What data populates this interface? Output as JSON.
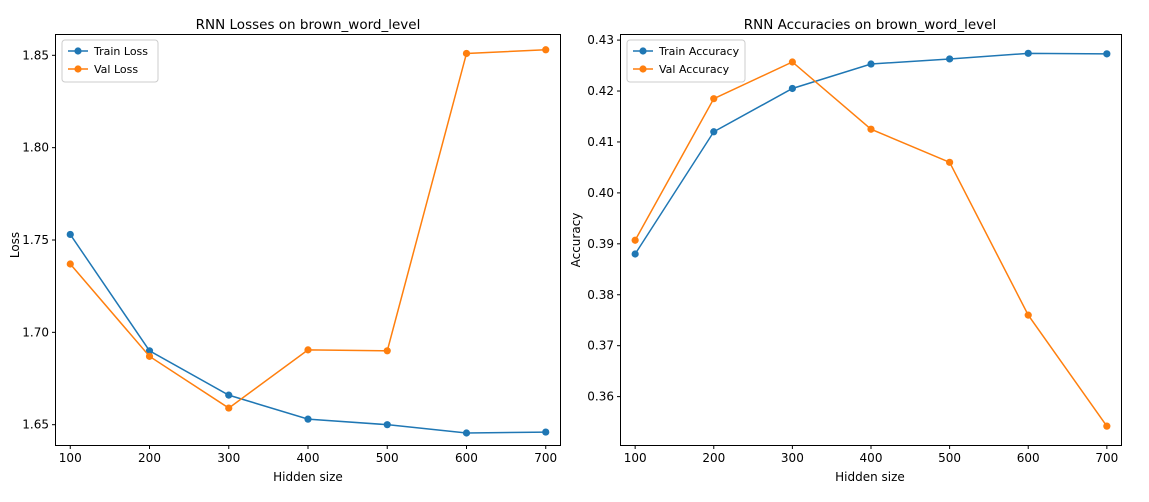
{
  "chart_data": [
    {
      "type": "line",
      "title": "RNN Losses on brown_word_level",
      "xlabel": "Hidden size",
      "ylabel": "Loss",
      "x": [
        100,
        200,
        300,
        400,
        500,
        600,
        700
      ],
      "xlim": [
        82,
        718
      ],
      "ylim": [
        1.639,
        1.861
      ],
      "xticks": [
        100,
        200,
        300,
        400,
        500,
        600,
        700
      ],
      "yticks": [
        1.65,
        1.7,
        1.75,
        1.8,
        1.85
      ],
      "ytick_labels": [
        "1.65",
        "1.70",
        "1.75",
        "1.80",
        "1.85"
      ],
      "grid": false,
      "legend_position": "top-left",
      "series": [
        {
          "name": "Train Loss",
          "color": "#1f77b4",
          "values": [
            1.753,
            1.69,
            1.666,
            1.653,
            1.65,
            1.6455,
            1.646
          ]
        },
        {
          "name": "Val Loss",
          "color": "#ff7f0e",
          "values": [
            1.737,
            1.687,
            1.659,
            1.6905,
            1.69,
            1.851,
            1.853
          ]
        }
      ]
    },
    {
      "type": "line",
      "title": "RNN Accuracies on brown_word_level",
      "xlabel": "Hidden size",
      "ylabel": "Accuracy",
      "x": [
        100,
        200,
        300,
        400,
        500,
        600,
        700
      ],
      "xlim": [
        82,
        718
      ],
      "ylim": [
        0.3505,
        0.431
      ],
      "xticks": [
        100,
        200,
        300,
        400,
        500,
        600,
        700
      ],
      "yticks": [
        0.36,
        0.37,
        0.38,
        0.39,
        0.4,
        0.41,
        0.42,
        0.43
      ],
      "ytick_labels": [
        "0.36",
        "0.37",
        "0.38",
        "0.39",
        "0.40",
        "0.41",
        "0.42",
        "0.43"
      ],
      "grid": false,
      "legend_position": "top-left",
      "series": [
        {
          "name": "Train Accuracy",
          "color": "#1f77b4",
          "values": [
            0.388,
            0.412,
            0.4205,
            0.4253,
            0.4263,
            0.4274,
            0.4273
          ]
        },
        {
          "name": "Val Accuracy",
          "color": "#ff7f0e",
          "values": [
            0.3907,
            0.4185,
            0.4257,
            0.4125,
            0.406,
            0.376,
            0.3542
          ]
        }
      ]
    }
  ]
}
